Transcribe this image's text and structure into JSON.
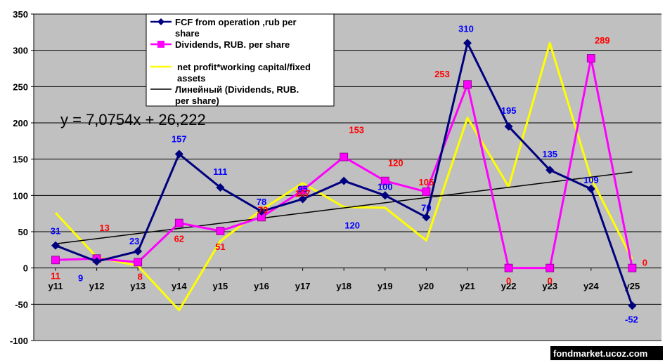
{
  "chart_data": {
    "type": "line",
    "categories": [
      "y11",
      "y12",
      "y13",
      "y14",
      "y15",
      "y16",
      "y17",
      "y18",
      "y19",
      "y20",
      "y21",
      "y22",
      "y23",
      "y24",
      "y25"
    ],
    "ylim": [
      -100,
      350
    ],
    "yticks": [
      -100,
      -50,
      0,
      50,
      100,
      150,
      200,
      250,
      300,
      350
    ],
    "grid": true,
    "legend_position": "top-center",
    "series": [
      {
        "name": "FCF from operation ,rub per share",
        "color": "#00007F",
        "label_color": "#0000FF",
        "marker": "diamond",
        "values": [
          31,
          9,
          23,
          157,
          111,
          78,
          95,
          120,
          100,
          70,
          310,
          195,
          135,
          109,
          -52
        ],
        "labels": [
          "31",
          "9",
          "23",
          "157",
          "111",
          "78",
          "95",
          "120",
          "100",
          "70",
          "310",
          "195",
          "135",
          "109",
          "-52"
        ]
      },
      {
        "name": "Dividends, RUB. per share",
        "color": "#FF00FF",
        "label_color": "#FF0000",
        "marker": "square",
        "values": [
          11,
          13,
          8,
          62,
          51,
          70,
          107,
          153,
          120,
          105,
          253,
          0,
          0,
          289,
          0
        ],
        "labels": [
          "11",
          "13",
          "8",
          "62",
          "51",
          "70",
          "107",
          "153",
          "120",
          "105",
          "253",
          "0",
          "0",
          "289",
          "0"
        ]
      },
      {
        "name": "net profit*working capital/fixed assets",
        "color": "#FFFF00",
        "marker": "none",
        "values": [
          76,
          15,
          3,
          -58,
          37,
          80,
          117,
          84,
          83,
          38,
          207,
          112,
          310,
          124,
          12
        ]
      },
      {
        "name": "Линейный (Dividends, RUB. per share)",
        "color": "#000000",
        "marker": "none",
        "trend": {
          "slope": 7.0754,
          "intercept": 26.222
        }
      }
    ],
    "annotation": "y = 7,0754x + 26,222",
    "watermark": "fondmarket.ucoz.com"
  },
  "colors": {
    "plot_bg": "#C0C0C0",
    "grid": "#000000"
  }
}
